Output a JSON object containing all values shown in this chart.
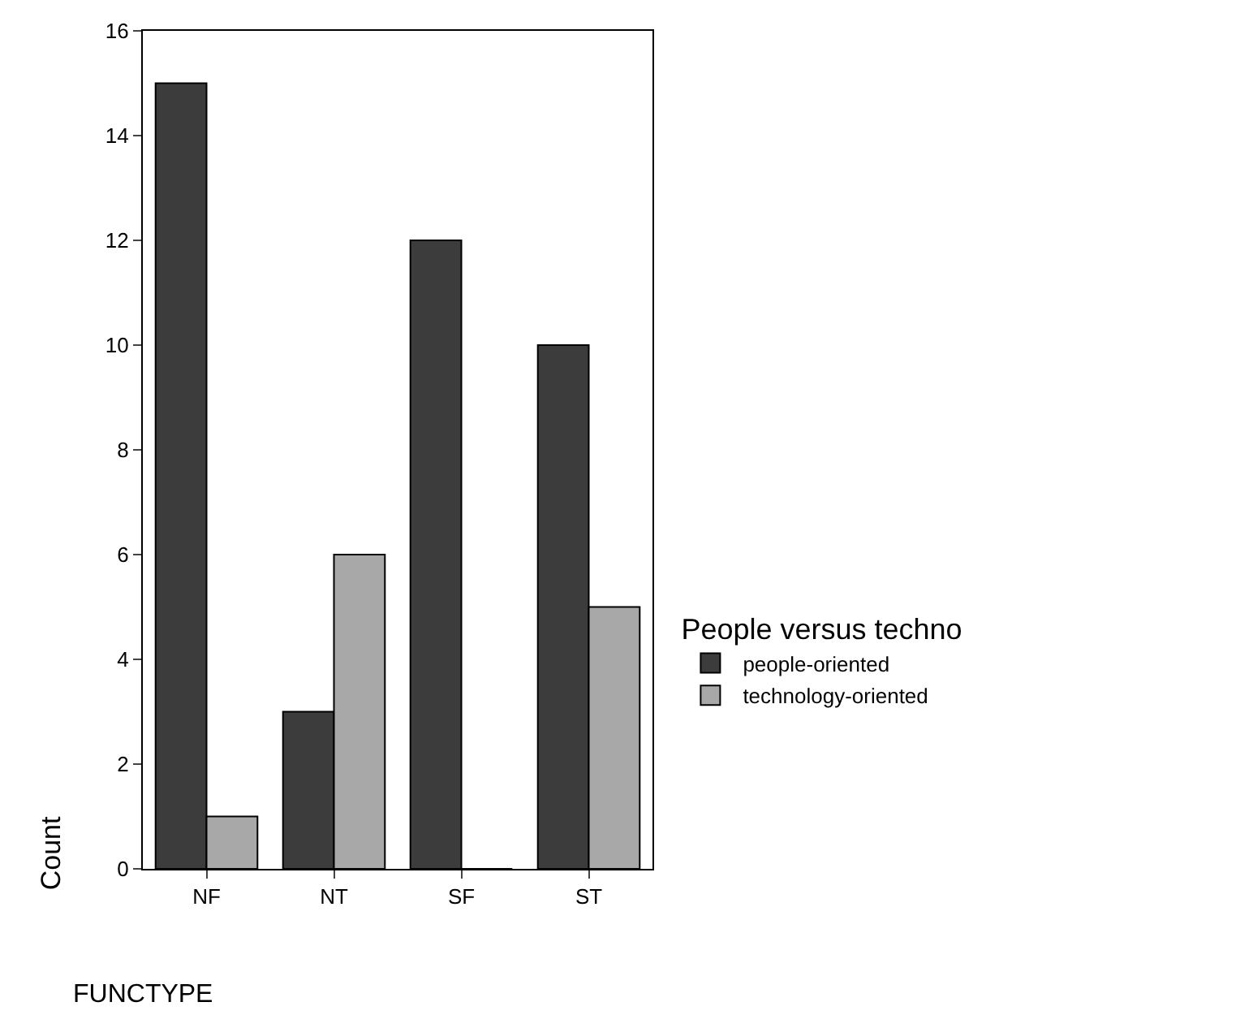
{
  "chart_data": {
    "type": "bar",
    "xlabel": "FUNCTYPE",
    "ylabel": "Count",
    "legend_title": "People versus techno",
    "categories": [
      "NF",
      "NT",
      "SF",
      "ST"
    ],
    "series": [
      {
        "name": "people-oriented",
        "color": "#3c3c3c",
        "values": [
          15,
          3,
          12,
          10
        ]
      },
      {
        "name": "technology-oriented",
        "color": "#a8a8a8",
        "values": [
          1,
          6,
          0,
          5
        ]
      }
    ],
    "ylim": [
      0,
      16
    ],
    "yticks": [
      0,
      2,
      4,
      6,
      8,
      10,
      12,
      14,
      16
    ],
    "legend": "right"
  }
}
